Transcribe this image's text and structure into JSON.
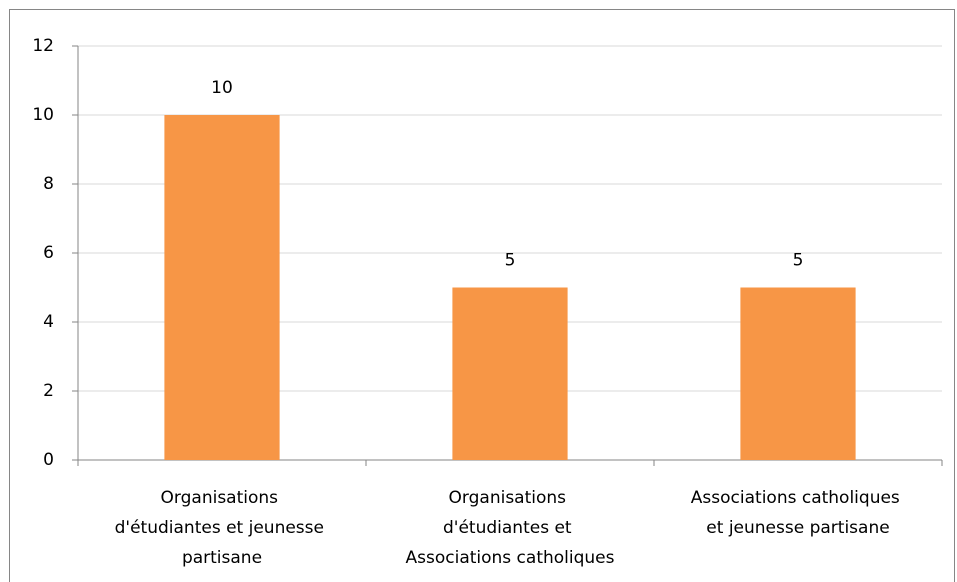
{
  "chart_data": {
    "type": "bar",
    "categories": [
      "Organisations d'étudiantes et jeunesse partisane",
      "Organisations d'étudiantes et Associations catholiques",
      "Associations catholiques et jeunesse partisane"
    ],
    "values": [
      10,
      5,
      5
    ],
    "color": "#f79646",
    "ylim": [
      0,
      12
    ],
    "yticks": [
      0,
      2,
      4,
      6,
      8,
      10,
      12
    ],
    "grid": true
  }
}
